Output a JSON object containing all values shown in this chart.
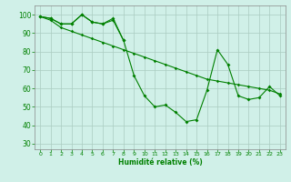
{
  "x": [
    0,
    1,
    2,
    3,
    4,
    5,
    6,
    7,
    8,
    9,
    10,
    11,
    12,
    13,
    14,
    15,
    16,
    17,
    18,
    19,
    20,
    21,
    22,
    23
  ],
  "line1": [
    99,
    98,
    95,
    95,
    100,
    96,
    95,
    97,
    86,
    null,
    null,
    null,
    null,
    null,
    null,
    null,
    null,
    null,
    null,
    null,
    null,
    null,
    null,
    null
  ],
  "line2": [
    99,
    98,
    95,
    95,
    100,
    96,
    95,
    98,
    86,
    67,
    56,
    50,
    51,
    47,
    42,
    43,
    59,
    81,
    73,
    56,
    54,
    55,
    61,
    56
  ],
  "line3": [
    99,
    97,
    93,
    91,
    89,
    87,
    85,
    83,
    81,
    79,
    77,
    75,
    73,
    71,
    69,
    67,
    65,
    64,
    63,
    62,
    61,
    60,
    59,
    57
  ],
  "line_color": "#008000",
  "bg_color": "#d0f0e8",
  "grid_color": "#aaccc0",
  "xlabel": "Humidité relative (%)",
  "ylim": [
    27,
    105
  ],
  "xlim": [
    -0.5,
    23.5
  ],
  "yticks": [
    30,
    40,
    50,
    60,
    70,
    80,
    90,
    100
  ],
  "xticks": [
    0,
    1,
    2,
    3,
    4,
    5,
    6,
    7,
    8,
    9,
    10,
    11,
    12,
    13,
    14,
    15,
    16,
    17,
    18,
    19,
    20,
    21,
    22,
    23
  ]
}
